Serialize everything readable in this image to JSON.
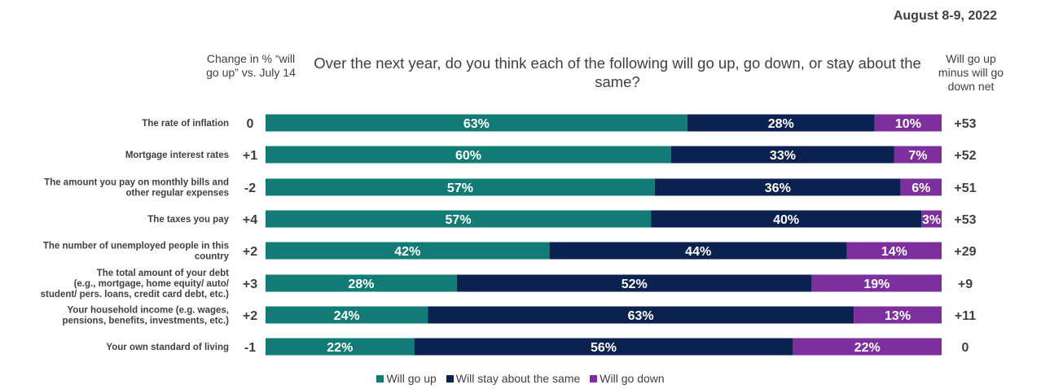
{
  "date": "August 8-9, 2022",
  "header": {
    "left": "Change in % “will go up” vs. July 14",
    "question": "Over the next year, do you think each of the following will go up, go down, or stay about the same?",
    "right": "Will go up minus will go down net"
  },
  "colors": {
    "up": "#127B76",
    "same": "#0B2250",
    "down": "#7E2F9E"
  },
  "chart_data": {
    "type": "bar",
    "orientation": "horizontal-stacked",
    "categories": [
      [
        "The rate of inflation"
      ],
      [
        "Mortgage interest rates"
      ],
      [
        "The amount you pay on monthly bills and",
        "other regular expenses"
      ],
      [
        "The taxes you pay"
      ],
      [
        "The number of unemployed people in this",
        "country"
      ],
      [
        "The total amount of your debt",
        "(e.g., mortgage, home equity/ auto/",
        "student/ pers. loans, credit card debt, etc.)"
      ],
      [
        "Your household income (e.g. wages,",
        "pensions, benefits, investments, etc.)"
      ],
      [
        "Your own standard of living"
      ]
    ],
    "series": [
      {
        "name": "Will go up",
        "values": [
          63,
          60,
          57,
          57,
          42,
          28,
          24,
          22
        ]
      },
      {
        "name": "Will stay about the same",
        "values": [
          28,
          33,
          36,
          40,
          44,
          52,
          63,
          56
        ]
      },
      {
        "name": "Will go down",
        "values": [
          10,
          7,
          6,
          3,
          14,
          19,
          13,
          22
        ]
      }
    ],
    "change_vs_july14": [
      "0",
      "+1",
      "-2",
      "+4",
      "+2",
      "+3",
      "+2",
      "-1"
    ],
    "net": [
      "+53",
      "+52",
      "+51",
      "+53",
      "+29",
      "+9",
      "+11",
      "0"
    ],
    "xlim": [
      0,
      100
    ]
  },
  "legend": [
    "Will go up",
    "Will stay about the same",
    "Will go down"
  ]
}
